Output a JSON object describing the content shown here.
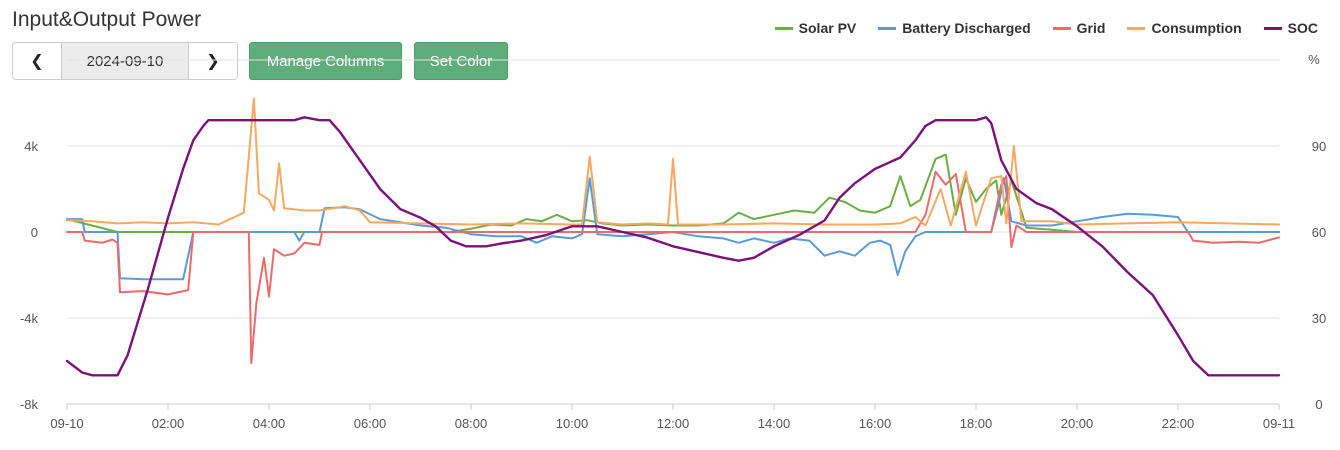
{
  "title": "Input&Output Power",
  "date": "2024-09-10",
  "buttons": {
    "prev": "❮",
    "next": "❯",
    "manage": "Manage Columns",
    "color": "Set Color"
  },
  "legend": [
    {
      "name": "Solar PV",
      "color": "#6aaf44"
    },
    {
      "name": "Battery Discharged",
      "color": "#5b9bd5"
    },
    {
      "name": "Grid",
      "color": "#ee6a6a"
    },
    {
      "name": "Consumption",
      "color": "#f4a862"
    },
    {
      "name": "SOC",
      "color": "#7b127b"
    }
  ],
  "chart_data": {
    "type": "line",
    "title": "Input&Output Power",
    "x_ticks": [
      "09-10",
      "02:00",
      "04:00",
      "06:00",
      "08:00",
      "10:00",
      "12:00",
      "14:00",
      "16:00",
      "18:00",
      "20:00",
      "22:00",
      "09-11"
    ],
    "x_range_hours": [
      0,
      24
    ],
    "y_left_ticks": [
      "-8k",
      "-4k",
      "0",
      "4k"
    ],
    "y_left_range": [
      -8000,
      8000
    ],
    "y_right_ticks": [
      "0",
      "30",
      "60",
      "90"
    ],
    "y_right_range": [
      0,
      120
    ],
    "y_right_label": "%",
    "series": [
      {
        "name": "Solar PV",
        "axis": "left",
        "color": "#6aaf44",
        "points": [
          [
            0,
            600
          ],
          [
            1,
            0
          ],
          [
            7.6,
            0
          ],
          [
            8,
            150
          ],
          [
            8.4,
            350
          ],
          [
            8.8,
            300
          ],
          [
            9.1,
            600
          ],
          [
            9.4,
            500
          ],
          [
            9.7,
            800
          ],
          [
            10.0,
            500
          ],
          [
            10.3,
            550
          ],
          [
            10.6,
            400
          ],
          [
            11,
            300
          ],
          [
            11.5,
            350
          ],
          [
            12,
            300
          ],
          [
            12.5,
            300
          ],
          [
            13,
            400
          ],
          [
            13.3,
            900
          ],
          [
            13.6,
            600
          ],
          [
            14.0,
            800
          ],
          [
            14.4,
            1000
          ],
          [
            14.8,
            900
          ],
          [
            15.1,
            1600
          ],
          [
            15.4,
            1400
          ],
          [
            15.7,
            1000
          ],
          [
            16.0,
            900
          ],
          [
            16.3,
            1200
          ],
          [
            16.5,
            2600
          ],
          [
            16.7,
            1200
          ],
          [
            16.9,
            1500
          ],
          [
            17.2,
            3400
          ],
          [
            17.4,
            3600
          ],
          [
            17.6,
            800
          ],
          [
            17.8,
            2500
          ],
          [
            18.0,
            1400
          ],
          [
            18.2,
            2000
          ],
          [
            18.4,
            2400
          ],
          [
            18.5,
            800
          ],
          [
            18.7,
            2400
          ],
          [
            19.0,
            200
          ],
          [
            19.5,
            100
          ],
          [
            20,
            0
          ],
          [
            24,
            0
          ]
        ]
      },
      {
        "name": "Battery Discharged",
        "axis": "left",
        "color": "#5b9bd5",
        "points": [
          [
            0,
            600
          ],
          [
            0.3,
            600
          ],
          [
            0.35,
            0
          ],
          [
            1,
            0
          ],
          [
            1.05,
            -2150
          ],
          [
            1.5,
            -2200
          ],
          [
            2.3,
            -2200
          ],
          [
            2.5,
            0
          ],
          [
            4.5,
            0
          ],
          [
            4.6,
            -400
          ],
          [
            4.7,
            0
          ],
          [
            5.0,
            0
          ],
          [
            5.1,
            1100
          ],
          [
            5.5,
            1150
          ],
          [
            5.8,
            1050
          ],
          [
            6.2,
            600
          ],
          [
            7,
            300
          ],
          [
            7.5,
            200
          ],
          [
            8,
            -100
          ],
          [
            8.5,
            -200
          ],
          [
            9,
            -200
          ],
          [
            9.3,
            -500
          ],
          [
            9.6,
            -200
          ],
          [
            10,
            -300
          ],
          [
            10.2,
            -100
          ],
          [
            10.35,
            2500
          ],
          [
            10.5,
            -100
          ],
          [
            11,
            -200
          ],
          [
            11.5,
            -100
          ],
          [
            12,
            0
          ],
          [
            12.5,
            -200
          ],
          [
            13,
            -300
          ],
          [
            13.3,
            -500
          ],
          [
            13.6,
            -300
          ],
          [
            14,
            -500
          ],
          [
            14.3,
            -300
          ],
          [
            14.7,
            -400
          ],
          [
            15,
            -1100
          ],
          [
            15.3,
            -900
          ],
          [
            15.6,
            -1100
          ],
          [
            15.9,
            -500
          ],
          [
            16.1,
            -400
          ],
          [
            16.3,
            -600
          ],
          [
            16.45,
            -2000
          ],
          [
            16.6,
            -900
          ],
          [
            16.8,
            -200
          ],
          [
            17,
            0
          ],
          [
            18.3,
            0
          ],
          [
            18.45,
            1300
          ],
          [
            18.55,
            2500
          ],
          [
            18.7,
            500
          ],
          [
            19,
            300
          ],
          [
            19.5,
            300
          ],
          [
            20,
            500
          ],
          [
            20.5,
            700
          ],
          [
            21,
            850
          ],
          [
            21.5,
            800
          ],
          [
            22,
            700
          ],
          [
            22.2,
            0
          ],
          [
            24,
            0
          ]
        ]
      },
      {
        "name": "Grid",
        "axis": "left",
        "color": "#ee6a6a",
        "points": [
          [
            0,
            0
          ],
          [
            0.3,
            0
          ],
          [
            0.35,
            -400
          ],
          [
            0.7,
            -500
          ],
          [
            0.9,
            -350
          ],
          [
            1,
            -500
          ],
          [
            1.05,
            -2800
          ],
          [
            1.5,
            -2750
          ],
          [
            2,
            -2900
          ],
          [
            2.4,
            -2700
          ],
          [
            2.5,
            0
          ],
          [
            3.6,
            0
          ],
          [
            3.65,
            -6100
          ],
          [
            3.75,
            -3300
          ],
          [
            3.9,
            -1200
          ],
          [
            4.0,
            -3000
          ],
          [
            4.1,
            -800
          ],
          [
            4.3,
            -1100
          ],
          [
            4.5,
            -1000
          ],
          [
            4.7,
            -500
          ],
          [
            5.0,
            -600
          ],
          [
            5.05,
            0
          ],
          [
            16.8,
            0
          ],
          [
            17.0,
            800
          ],
          [
            17.2,
            2800
          ],
          [
            17.4,
            2200
          ],
          [
            17.6,
            2700
          ],
          [
            17.8,
            0
          ],
          [
            18.3,
            0
          ],
          [
            18.5,
            2200
          ],
          [
            18.6,
            2600
          ],
          [
            18.7,
            -700
          ],
          [
            18.8,
            300
          ],
          [
            19,
            0
          ],
          [
            22.2,
            0
          ],
          [
            22.3,
            -400
          ],
          [
            22.7,
            -500
          ],
          [
            23.2,
            -450
          ],
          [
            23.6,
            -500
          ],
          [
            24,
            -250
          ]
        ]
      },
      {
        "name": "Consumption",
        "axis": "left",
        "color": "#f4a862",
        "points": [
          [
            0,
            550
          ],
          [
            0.5,
            500
          ],
          [
            1,
            400
          ],
          [
            1.5,
            450
          ],
          [
            2,
            400
          ],
          [
            2.5,
            450
          ],
          [
            3.0,
            350
          ],
          [
            3.5,
            900
          ],
          [
            3.7,
            6200
          ],
          [
            3.8,
            1800
          ],
          [
            4.0,
            1500
          ],
          [
            4.1,
            1000
          ],
          [
            4.2,
            3200
          ],
          [
            4.3,
            1100
          ],
          [
            4.7,
            1000
          ],
          [
            5,
            1000
          ],
          [
            5.5,
            1200
          ],
          [
            5.8,
            1000
          ],
          [
            6,
            450
          ],
          [
            7,
            400
          ],
          [
            8,
            350
          ],
          [
            9,
            400
          ],
          [
            10,
            350
          ],
          [
            10.2,
            350
          ],
          [
            10.35,
            3500
          ],
          [
            10.5,
            450
          ],
          [
            11,
            350
          ],
          [
            11.5,
            400
          ],
          [
            11.9,
            350
          ],
          [
            12,
            3400
          ],
          [
            12.1,
            350
          ],
          [
            13,
            350
          ],
          [
            14,
            400
          ],
          [
            15,
            350
          ],
          [
            16,
            350
          ],
          [
            16.5,
            400
          ],
          [
            16.8,
            700
          ],
          [
            17,
            300
          ],
          [
            17.3,
            2000
          ],
          [
            17.5,
            300
          ],
          [
            17.8,
            2800
          ],
          [
            18,
            300
          ],
          [
            18.3,
            2500
          ],
          [
            18.5,
            2600
          ],
          [
            18.6,
            400
          ],
          [
            18.75,
            4000
          ],
          [
            18.9,
            500
          ],
          [
            19.5,
            500
          ],
          [
            20,
            350
          ],
          [
            21,
            400
          ],
          [
            22,
            450
          ],
          [
            23,
            400
          ],
          [
            24,
            350
          ]
        ]
      },
      {
        "name": "SOC",
        "axis": "right",
        "color": "#7b127b",
        "points": [
          [
            0,
            15
          ],
          [
            0.3,
            11
          ],
          [
            0.5,
            10
          ],
          [
            1,
            10
          ],
          [
            1.2,
            17
          ],
          [
            1.6,
            40
          ],
          [
            2.0,
            65
          ],
          [
            2.3,
            82
          ],
          [
            2.5,
            92
          ],
          [
            2.7,
            97
          ],
          [
            2.8,
            99
          ],
          [
            3.5,
            99
          ],
          [
            4,
            99
          ],
          [
            4.5,
            99
          ],
          [
            4.7,
            100
          ],
          [
            5,
            99
          ],
          [
            5.2,
            99
          ],
          [
            5.4,
            95
          ],
          [
            5.8,
            85
          ],
          [
            6.2,
            75
          ],
          [
            6.6,
            68
          ],
          [
            7.0,
            65
          ],
          [
            7.3,
            62
          ],
          [
            7.6,
            57
          ],
          [
            7.9,
            55
          ],
          [
            8.3,
            55
          ],
          [
            8.6,
            56
          ],
          [
            9,
            57
          ],
          [
            9.5,
            59
          ],
          [
            10,
            62
          ],
          [
            10.5,
            62
          ],
          [
            11,
            60
          ],
          [
            11.5,
            58
          ],
          [
            12,
            55
          ],
          [
            12.5,
            53
          ],
          [
            13,
            51
          ],
          [
            13.3,
            50
          ],
          [
            13.6,
            51
          ],
          [
            14,
            55
          ],
          [
            14.5,
            59
          ],
          [
            15,
            64
          ],
          [
            15.3,
            72
          ],
          [
            15.6,
            77
          ],
          [
            16.0,
            82
          ],
          [
            16.5,
            86
          ],
          [
            16.8,
            92
          ],
          [
            17.0,
            97
          ],
          [
            17.2,
            99
          ],
          [
            17.5,
            99
          ],
          [
            18,
            99
          ],
          [
            18.2,
            100
          ],
          [
            18.3,
            98
          ],
          [
            18.5,
            85
          ],
          [
            18.8,
            75
          ],
          [
            19.2,
            70
          ],
          [
            19.5,
            68
          ],
          [
            20,
            62
          ],
          [
            20.5,
            55
          ],
          [
            21,
            46
          ],
          [
            21.5,
            38
          ],
          [
            22,
            24
          ],
          [
            22.3,
            15
          ],
          [
            22.6,
            10
          ],
          [
            23,
            10
          ],
          [
            24,
            10
          ]
        ]
      }
    ]
  }
}
